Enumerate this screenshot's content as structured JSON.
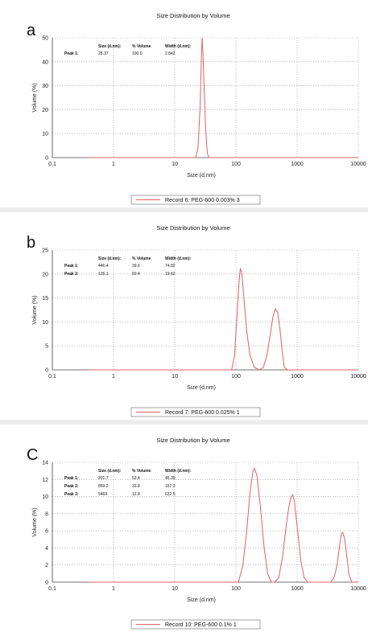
{
  "chart_data": [
    {
      "type": "line",
      "panel_label": "a",
      "title": "Size Distribution by Volume",
      "xlabel": "Size (d.nm)",
      "ylabel": "Volume (%)",
      "xscale": "log",
      "xlim": [
        0.1,
        10000
      ],
      "ylim": [
        0,
        50
      ],
      "xticks": [
        0.1,
        1,
        10,
        100,
        1000,
        10000
      ],
      "xtick_labels": [
        "0.1",
        "1",
        "10",
        "100",
        "1000",
        "10000"
      ],
      "yticks": [
        0,
        10,
        20,
        30,
        40,
        50
      ],
      "grid": true,
      "table": {
        "headers": [
          "Size (d.nm):",
          "% Volume",
          "Width (d.nm):"
        ],
        "rows": [
          {
            "label": "Peak 1:",
            "cells": [
              "28.37",
              "100.0",
              "2.842"
            ]
          }
        ]
      },
      "legend": "Record 6: PEG-600 0.003% 3",
      "series": [
        {
          "color": "#e06060",
          "x": [
            0.4,
            20,
            22,
            24,
            26,
            27,
            28,
            29,
            30,
            32,
            34,
            36,
            38,
            10000
          ],
          "y": [
            0,
            0,
            0,
            4,
            21,
            38,
            50,
            43,
            31,
            12,
            2,
            0,
            0,
            0
          ]
        }
      ]
    },
    {
      "type": "line",
      "panel_label": "b",
      "title": "Size Distribution by Volume",
      "xlabel": "Size (d.nm)",
      "ylabel": "Volume (%)",
      "xscale": "log",
      "xlim": [
        0.1,
        10000
      ],
      "ylim": [
        0,
        25
      ],
      "xticks": [
        0.1,
        1,
        10,
        100,
        1000,
        10000
      ],
      "xtick_labels": [
        "0.1",
        "1",
        "10",
        "100",
        "1000",
        "10000"
      ],
      "yticks": [
        0,
        5,
        10,
        15,
        20,
        25
      ],
      "grid": true,
      "table": {
        "headers": [
          "Size (d.nm):",
          "% Volume",
          "Width (d.nm):"
        ],
        "rows": [
          {
            "label": "Peak 1:",
            "cells": [
              "446.4",
              "39.6",
              "74.82"
            ]
          },
          {
            "label": "Peak 2:",
            "cells": [
              "125.1",
              "60.4",
              "19.62"
            ]
          }
        ]
      },
      "legend": "Record 7: PEG-600 0.025% 1",
      "series": [
        {
          "color": "#e06060",
          "x": [
            0.4,
            85,
            95,
            105,
            112,
            118,
            125,
            135,
            150,
            170,
            200,
            240,
            280,
            320,
            360,
            400,
            440,
            480,
            530,
            580,
            620,
            700,
            10000
          ],
          "y": [
            0,
            0,
            3,
            12,
            18,
            21.2,
            20,
            15,
            8,
            3,
            0.5,
            0,
            0.5,
            3,
            7,
            11,
            12.7,
            12,
            8,
            3,
            0.5,
            0,
            0
          ]
        }
      ]
    },
    {
      "type": "line",
      "panel_label": "C",
      "title": "Size Distribution by Volume",
      "xlabel": "Size (d.nm)",
      "ylabel": "Volume (%)",
      "xscale": "log",
      "xlim": [
        0.1,
        10000
      ],
      "ylim": [
        0,
        14
      ],
      "xticks": [
        0.1,
        1,
        10,
        100,
        1000,
        10000
      ],
      "xtick_labels": [
        "0.1",
        "1",
        "10",
        "100",
        "1000",
        "10000"
      ],
      "yticks": [
        0,
        2,
        4,
        6,
        8,
        10,
        12,
        14
      ],
      "grid": true,
      "table": {
        "headers": [
          "Size (d.nm):",
          "% Volume",
          "Width (d.nm):"
        ],
        "rows": [
          {
            "label": "Peak 1:",
            "cells": [
              "201.7",
              "53.4",
              "45.39"
            ]
          },
          {
            "label": "Peak 2:",
            "cells": [
              "859.2",
              "33.8",
              "167.3"
            ]
          },
          {
            "label": "Peak 3:",
            "cells": [
              "5469",
              "12.8",
              "632.5"
            ]
          }
        ]
      },
      "legend": "Record 10: PEG-600 0.1% 1",
      "series": [
        {
          "color": "#e06060",
          "x": [
            0.4,
            110,
            130,
            150,
            170,
            190,
            200,
            220,
            250,
            290,
            330,
            380,
            430,
            500,
            580,
            660,
            740,
            800,
            850,
            900,
            1000,
            1150,
            1300,
            1500,
            3500,
            4000,
            4500,
            5000,
            5300,
            5600,
            6000,
            6500,
            7000,
            7800,
            10000
          ],
          "y": [
            0,
            0,
            2,
            6,
            10.5,
            13,
            13.3,
            12.5,
            9,
            4,
            1,
            0,
            0,
            0.5,
            3,
            6.5,
            9,
            10,
            10.2,
            9.5,
            6.5,
            2.5,
            0.5,
            0,
            0,
            0.5,
            2,
            4.5,
            5.7,
            5.8,
            5,
            3,
            1,
            0,
            0
          ]
        }
      ]
    }
  ]
}
